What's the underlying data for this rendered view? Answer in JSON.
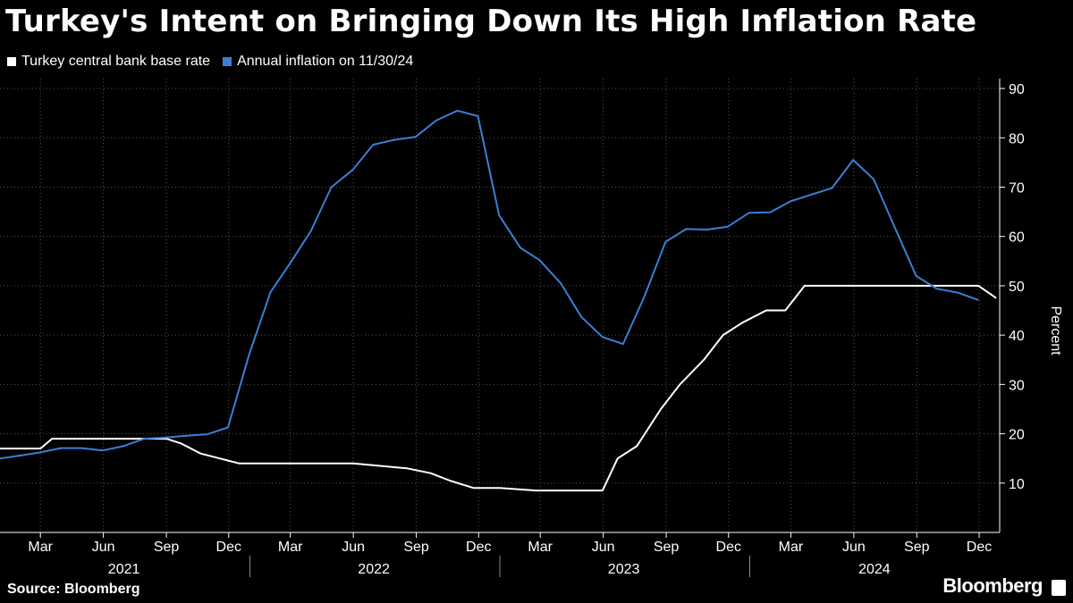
{
  "header": {
    "title": "Turkey's Intent on Bringing Down Its High Inflation Rate"
  },
  "footer": {
    "source": "Source: Bloomberg",
    "brand": "Bloomberg"
  },
  "colors": {
    "background": "#000000",
    "base_rate": "#ffffff",
    "inflation": "#3a7fd5",
    "grid": "#555555"
  },
  "chart_data": {
    "type": "line",
    "ylabel": "Percent",
    "ylim": [
      0,
      92
    ],
    "yticks": [
      10,
      20,
      30,
      40,
      50,
      60,
      70,
      80,
      90
    ],
    "xlim": [
      "2021-01-01",
      "2024-12-31"
    ],
    "x_month_ticks": [
      {
        "date": "2021-03-01",
        "label": "Mar"
      },
      {
        "date": "2021-06-01",
        "label": "Jun"
      },
      {
        "date": "2021-09-01",
        "label": "Sep"
      },
      {
        "date": "2021-12-01",
        "label": "Dec"
      },
      {
        "date": "2022-03-01",
        "label": "Mar"
      },
      {
        "date": "2022-06-01",
        "label": "Jun"
      },
      {
        "date": "2022-09-01",
        "label": "Sep"
      },
      {
        "date": "2022-12-01",
        "label": "Dec"
      },
      {
        "date": "2023-03-01",
        "label": "Mar"
      },
      {
        "date": "2023-06-01",
        "label": "Jun"
      },
      {
        "date": "2023-09-01",
        "label": "Sep"
      },
      {
        "date": "2023-12-01",
        "label": "Dec"
      },
      {
        "date": "2024-03-01",
        "label": "Mar"
      },
      {
        "date": "2024-06-01",
        "label": "Jun"
      },
      {
        "date": "2024-09-01",
        "label": "Sep"
      },
      {
        "date": "2024-12-01",
        "label": "Dec"
      }
    ],
    "x_year_labels": [
      {
        "date": "2021-07-01",
        "label": "2021"
      },
      {
        "date": "2022-07-01",
        "label": "2022"
      },
      {
        "date": "2023-07-01",
        "label": "2023"
      },
      {
        "date": "2024-07-01",
        "label": "2024"
      }
    ],
    "x_year_dividers": [
      "2022-01-01",
      "2023-01-01",
      "2024-01-01"
    ],
    "grid": true,
    "legend_position": "top-left",
    "series": [
      {
        "name": "Turkey central bank base rate",
        "color": "#ffffff",
        "points": [
          [
            "2021-01-01",
            17
          ],
          [
            "2021-02-01",
            17
          ],
          [
            "2021-03-01",
            17
          ],
          [
            "2021-03-18",
            19
          ],
          [
            "2021-04-01",
            19
          ],
          [
            "2021-05-01",
            19
          ],
          [
            "2021-06-01",
            19
          ],
          [
            "2021-07-01",
            19
          ],
          [
            "2021-08-01",
            19
          ],
          [
            "2021-09-01",
            19
          ],
          [
            "2021-09-23",
            18
          ],
          [
            "2021-10-21",
            16
          ],
          [
            "2021-11-18",
            15
          ],
          [
            "2021-12-16",
            14
          ],
          [
            "2022-01-01",
            14
          ],
          [
            "2022-06-01",
            14
          ],
          [
            "2022-08-18",
            13
          ],
          [
            "2022-09-22",
            12
          ],
          [
            "2022-10-20",
            10.5
          ],
          [
            "2022-11-24",
            9
          ],
          [
            "2023-01-01",
            9
          ],
          [
            "2023-02-23",
            8.5
          ],
          [
            "2023-05-31",
            8.5
          ],
          [
            "2023-06-22",
            15
          ],
          [
            "2023-07-20",
            17.5
          ],
          [
            "2023-08-24",
            25
          ],
          [
            "2023-09-21",
            30
          ],
          [
            "2023-10-26",
            35
          ],
          [
            "2023-11-23",
            40
          ],
          [
            "2023-12-21",
            42.5
          ],
          [
            "2024-01-25",
            45
          ],
          [
            "2024-02-22",
            45
          ],
          [
            "2024-03-21",
            50
          ],
          [
            "2024-06-01",
            50
          ],
          [
            "2024-11-30",
            50
          ],
          [
            "2024-12-26",
            47.5
          ]
        ]
      },
      {
        "name": "Annual inflation on 11/30/24",
        "color": "#3a7fd5",
        "points": [
          [
            "2021-01-01",
            15
          ],
          [
            "2021-01-31",
            15.6
          ],
          [
            "2021-02-28",
            16.2
          ],
          [
            "2021-03-31",
            17.1
          ],
          [
            "2021-04-30",
            17.1
          ],
          [
            "2021-05-31",
            16.6
          ],
          [
            "2021-06-30",
            17.5
          ],
          [
            "2021-07-31",
            19.0
          ],
          [
            "2021-08-31",
            19.25
          ],
          [
            "2021-09-30",
            19.6
          ],
          [
            "2021-10-31",
            19.9
          ],
          [
            "2021-11-30",
            21.3
          ],
          [
            "2021-12-31",
            36.1
          ],
          [
            "2022-01-31",
            48.7
          ],
          [
            "2022-02-28",
            54.4
          ],
          [
            "2022-03-31",
            61.1
          ],
          [
            "2022-04-30",
            70.0
          ],
          [
            "2022-05-31",
            73.5
          ],
          [
            "2022-06-30",
            78.6
          ],
          [
            "2022-07-31",
            79.6
          ],
          [
            "2022-08-31",
            80.2
          ],
          [
            "2022-09-30",
            83.5
          ],
          [
            "2022-10-31",
            85.5
          ],
          [
            "2022-11-30",
            84.4
          ],
          [
            "2022-12-31",
            64.3
          ],
          [
            "2023-01-31",
            57.7
          ],
          [
            "2023-02-28",
            55.2
          ],
          [
            "2023-03-31",
            50.5
          ],
          [
            "2023-04-30",
            43.7
          ],
          [
            "2023-05-31",
            39.6
          ],
          [
            "2023-06-30",
            38.2
          ],
          [
            "2023-07-31",
            47.8
          ],
          [
            "2023-08-31",
            58.9
          ],
          [
            "2023-09-30",
            61.5
          ],
          [
            "2023-10-31",
            61.4
          ],
          [
            "2023-11-30",
            62.0
          ],
          [
            "2023-12-31",
            64.8
          ],
          [
            "2024-01-31",
            64.9
          ],
          [
            "2024-02-29",
            67.1
          ],
          [
            "2024-03-31",
            68.5
          ],
          [
            "2024-04-30",
            69.8
          ],
          [
            "2024-05-31",
            75.5
          ],
          [
            "2024-06-30",
            71.6
          ],
          [
            "2024-07-31",
            61.8
          ],
          [
            "2024-08-31",
            52.0
          ],
          [
            "2024-09-30",
            49.4
          ],
          [
            "2024-10-31",
            48.6
          ],
          [
            "2024-11-30",
            47.1
          ]
        ]
      }
    ]
  }
}
